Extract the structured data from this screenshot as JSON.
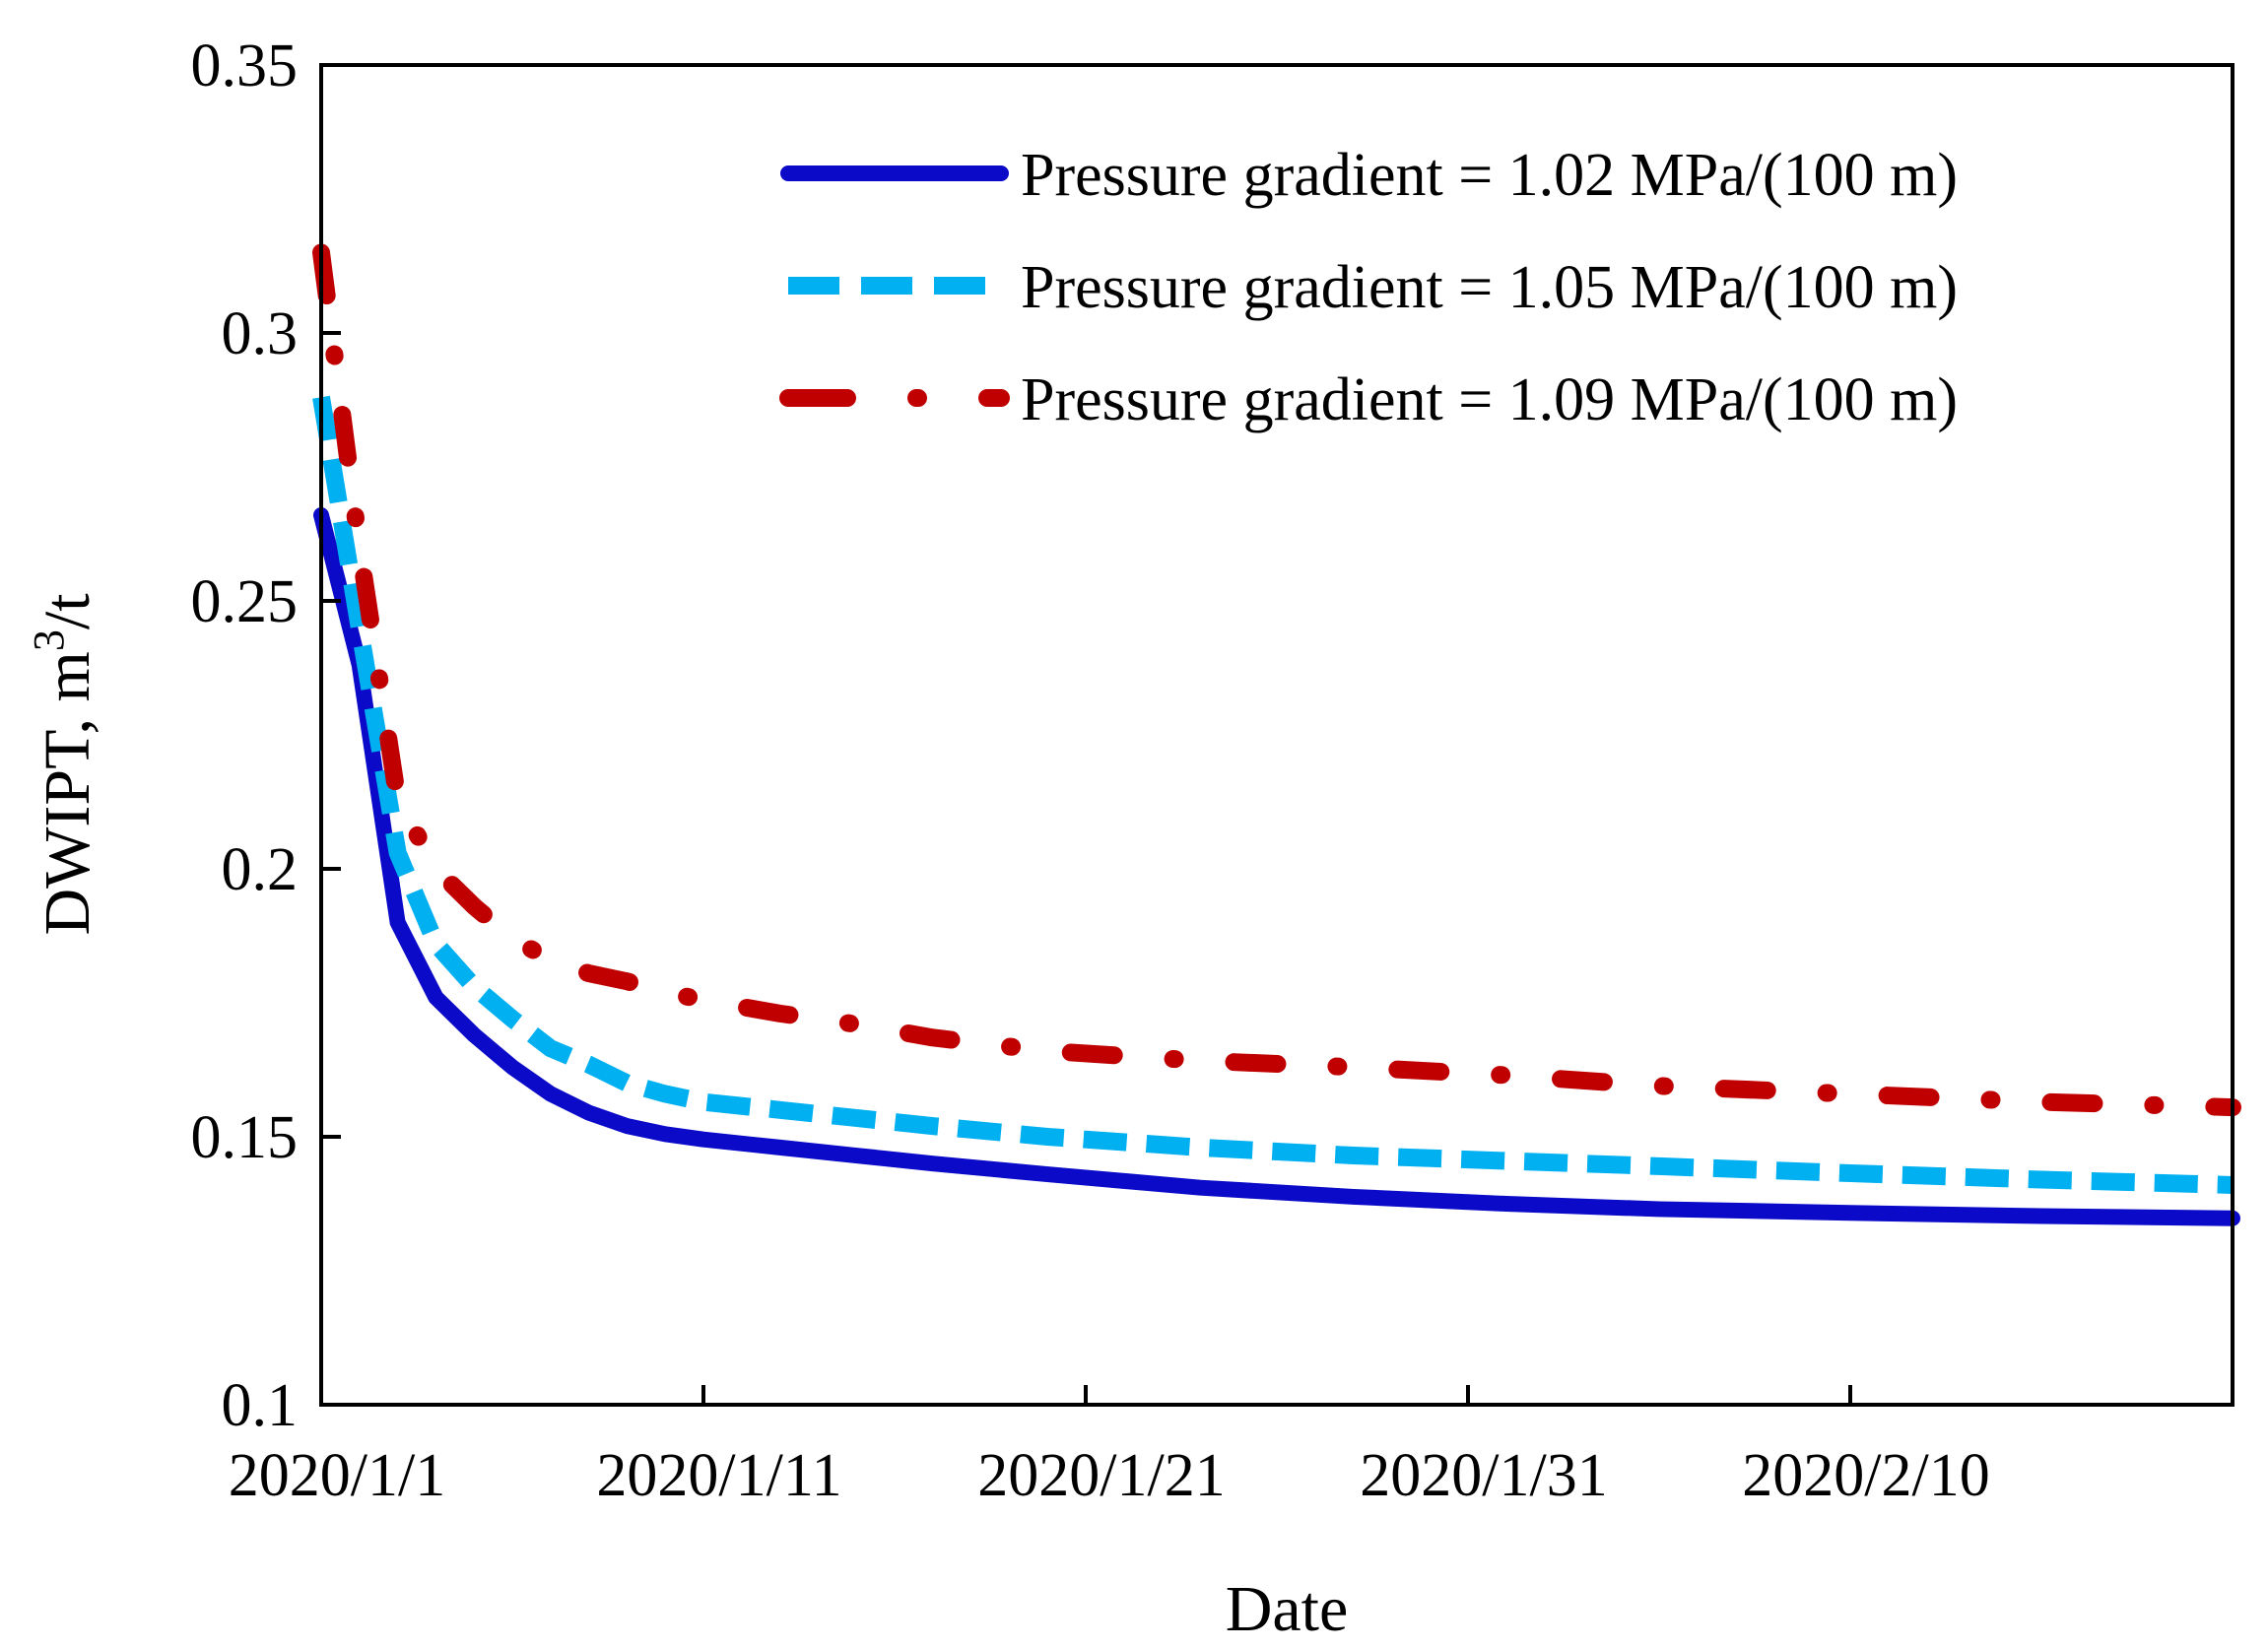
{
  "chart_data": {
    "type": "line",
    "xlabel": "Date",
    "ylabel": {
      "prefix": "DWIPT, m",
      "superscript": "3",
      "suffix": "/t"
    },
    "ylim": [
      0.1,
      0.35
    ],
    "yticks": [
      0.1,
      0.15,
      0.2,
      0.25,
      0.3,
      0.35
    ],
    "ytick_labels": [
      "0.1",
      "0.15",
      "0.2",
      "0.25",
      "0.3",
      "0.35"
    ],
    "xlim": [
      "2020-01-01",
      "2020-02-20"
    ],
    "xticks": [
      "2020-01-01",
      "2020-01-11",
      "2020-01-21",
      "2020-01-31",
      "2020-02-10"
    ],
    "xtick_labels": [
      "2020/1/1",
      "2020/1/11",
      "2020/1/21",
      "2020/1/31",
      "2020/2/10"
    ],
    "grid": false,
    "legend_position": "top-right",
    "series": [
      {
        "name": "Pressure gradient = 1.02 MPa/(100 m)",
        "color": "#0a0ac8",
        "style": "solid",
        "x": [
          "2020-01-01",
          "2020-01-02",
          "2020-01-03",
          "2020-01-04",
          "2020-01-05",
          "2020-01-06",
          "2020-01-07",
          "2020-01-08",
          "2020-01-09",
          "2020-01-10",
          "2020-01-11",
          "2020-01-13",
          "2020-01-15",
          "2020-01-17",
          "2020-01-20",
          "2020-01-24",
          "2020-01-28",
          "2020-02-01",
          "2020-02-05",
          "2020-02-10",
          "2020-02-15",
          "2020-02-20"
        ],
        "y": [
          0.266,
          0.238,
          0.19,
          0.176,
          0.169,
          0.163,
          0.158,
          0.1545,
          0.152,
          0.1505,
          0.1495,
          0.148,
          0.1465,
          0.145,
          0.143,
          0.1405,
          0.1388,
          0.1375,
          0.1365,
          0.1358,
          0.1352,
          0.1348
        ]
      },
      {
        "name": "Pressure gradient = 1.05 MPa/(100 m)",
        "color": "#00b0f0",
        "style": "dashed",
        "x": [
          "2020-01-01",
          "2020-01-02",
          "2020-01-03",
          "2020-01-04",
          "2020-01-05",
          "2020-01-06",
          "2020-01-07",
          "2020-01-08",
          "2020-01-09",
          "2020-01-10",
          "2020-01-11",
          "2020-01-13",
          "2020-01-15",
          "2020-01-17",
          "2020-01-20",
          "2020-01-24",
          "2020-01-28",
          "2020-02-01",
          "2020-02-05",
          "2020-02-10",
          "2020-02-15",
          "2020-02-20"
        ],
        "y": [
          0.288,
          0.245,
          0.203,
          0.186,
          0.178,
          0.172,
          0.1665,
          0.1635,
          0.16,
          0.158,
          0.1565,
          0.155,
          0.1535,
          0.152,
          0.15,
          0.148,
          0.1465,
          0.1455,
          0.1445,
          0.1432,
          0.142,
          0.141
        ]
      },
      {
        "name": "Pressure gradient = 1.09 MPa/(100 m)",
        "color": "#c00000",
        "style": "dashdot",
        "x": [
          "2020-01-01",
          "2020-01-02",
          "2020-01-03",
          "2020-01-04",
          "2020-01-05",
          "2020-01-06",
          "2020-01-07",
          "2020-01-08",
          "2020-01-09",
          "2020-01-10",
          "2020-01-11",
          "2020-01-13",
          "2020-01-15",
          "2020-01-17",
          "2020-01-20",
          "2020-01-24",
          "2020-01-28",
          "2020-02-01",
          "2020-02-05",
          "2020-02-10",
          "2020-02-15",
          "2020-02-20"
        ],
        "y": [
          0.315,
          0.26,
          0.213,
          0.2,
          0.193,
          0.187,
          0.183,
          0.1805,
          0.179,
          0.177,
          0.1755,
          0.173,
          0.171,
          0.1685,
          0.166,
          0.1642,
          0.163,
          0.1615,
          0.1595,
          0.158,
          0.1565,
          0.1555
        ]
      }
    ]
  }
}
